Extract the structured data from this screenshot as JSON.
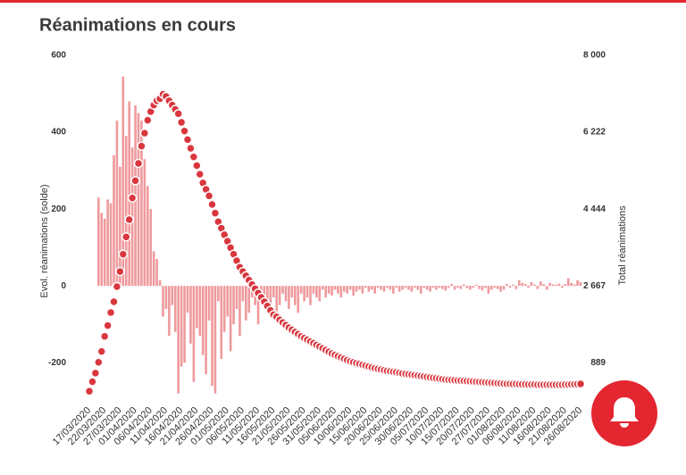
{
  "chart_data": {
    "type": "bar_line",
    "title": "Réanimations en cours",
    "y_label": "Evol. réanimations (solde)",
    "y2_label": "Total réanimations",
    "categories": [
      "17/03/2020",
      null,
      null,
      null,
      null,
      "22/03/2020",
      null,
      null,
      null,
      null,
      "27/03/2020",
      null,
      null,
      null,
      null,
      "01/04/2020",
      null,
      null,
      null,
      null,
      "06/04/2020",
      null,
      null,
      null,
      null,
      "11/04/2020",
      null,
      null,
      null,
      null,
      "16/04/2020",
      null,
      null,
      null,
      null,
      "21/04/2020",
      null,
      null,
      null,
      null,
      "26/04/2020",
      null,
      null,
      null,
      null,
      "01/05/2020",
      null,
      null,
      null,
      null,
      "06/05/2020",
      null,
      null,
      null,
      null,
      "11/05/2020",
      null,
      null,
      null,
      null,
      "16/05/2020",
      null,
      null,
      null,
      null,
      "21/05/2020",
      null,
      null,
      null,
      null,
      "26/05/2020",
      null,
      null,
      null,
      null,
      "31/05/2020",
      null,
      null,
      null,
      null,
      "05/06/2020",
      null,
      null,
      null,
      null,
      "10/06/2020",
      null,
      null,
      null,
      null,
      "15/06/2020",
      null,
      null,
      null,
      null,
      "20/06/2020",
      null,
      null,
      null,
      null,
      "25/06/2020",
      null,
      null,
      null,
      null,
      "30/06/2020",
      null,
      null,
      null,
      null,
      "05/07/2020",
      null,
      null,
      null,
      null,
      "10/07/2020",
      null,
      null,
      null,
      null,
      "15/07/2020",
      null,
      null,
      null,
      null,
      "20/07/2020",
      null,
      null,
      null,
      null,
      "27/07/2020",
      null,
      null,
      null,
      null,
      "01/08/2020",
      null,
      null,
      null,
      null,
      "06/08/2020",
      null,
      null,
      null,
      null,
      "11/08/2020",
      null,
      null,
      null,
      null,
      "16/08/2020",
      null,
      null,
      null,
      null,
      "21/08/2020",
      null,
      null,
      null,
      null,
      "26/08/2020"
    ],
    "series": [
      {
        "type": "bar",
        "color": "#ef9a9d",
        "values": [
          0,
          0,
          0,
          230,
          190,
          175,
          225,
          215,
          340,
          430,
          310,
          545,
          390,
          480,
          360,
          470,
          450,
          430,
          330,
          260,
          200,
          90,
          70,
          15,
          -80,
          -60,
          -130,
          -50,
          -120,
          -280,
          -210,
          -200,
          -70,
          -150,
          -250,
          -110,
          -130,
          -180,
          -230,
          -90,
          -260,
          -280,
          -40,
          -190,
          -120,
          -80,
          -170,
          -100,
          -60,
          -130,
          -40,
          -90,
          -70,
          -30,
          -50,
          -100,
          -20,
          -60,
          -40,
          -80,
          -30,
          -70,
          -50,
          -20,
          -40,
          -60,
          -30,
          -50,
          -70,
          -20,
          -40,
          -30,
          -50,
          -20,
          -30,
          -40,
          -10,
          -30,
          -20,
          -25,
          -10,
          -20,
          -30,
          -15,
          -20,
          -10,
          -25,
          -15,
          -10,
          -20,
          -5,
          -15,
          -10,
          -20,
          -5,
          -10,
          -15,
          -5,
          -10,
          -20,
          -5,
          -15,
          -10,
          -5,
          -10,
          -15,
          -5,
          -10,
          -20,
          -5,
          -10,
          -15,
          -5,
          -10,
          -5,
          -8,
          -12,
          -5,
          5,
          -10,
          -5,
          -8,
          4,
          -6,
          -10,
          -5,
          3,
          -8,
          -12,
          -5,
          -20,
          -10,
          -5,
          -8,
          -15,
          -10,
          5,
          -5,
          3,
          -8,
          15,
          8,
          5,
          -5,
          10,
          3,
          -8,
          12,
          5,
          -10,
          8,
          4,
          3,
          6,
          -5,
          5,
          20,
          8,
          4,
          15,
          10
        ]
      },
      {
        "type": "line",
        "axis": "y2",
        "color": "#d9363e",
        "values": [
          230,
          450,
          650,
          900,
          1150,
          1500,
          1750,
          2050,
          2300,
          2650,
          3000,
          3400,
          3800,
          4200,
          4700,
          5100,
          5500,
          5900,
          6200,
          6500,
          6700,
          6850,
          6950,
          7000,
          7100,
          7050,
          6950,
          6850,
          6750,
          6650,
          6450,
          6250,
          6050,
          5850,
          5650,
          5450,
          5250,
          5050,
          4900,
          4750,
          4550,
          4350,
          4150,
          4000,
          3850,
          3700,
          3550,
          3400,
          3250,
          3100,
          3000,
          2900,
          2800,
          2700,
          2600,
          2500,
          2400,
          2300,
          2200,
          2100,
          2000,
          1950,
          1880,
          1820,
          1760,
          1700,
          1650,
          1600,
          1550,
          1500,
          1460,
          1420,
          1380,
          1340,
          1300,
          1260,
          1220,
          1180,
          1140,
          1100,
          1070,
          1040,
          1010,
          980,
          950,
          920,
          900,
          880,
          860,
          840,
          820,
          800,
          780,
          760,
          745,
          730,
          715,
          700,
          690,
          680,
          670,
          655,
          640,
          630,
          620,
          610,
          600,
          590,
          580,
          570,
          560,
          550,
          540,
          530,
          520,
          510,
          500,
          495,
          490,
          485,
          480,
          475,
          470,
          465,
          460,
          455,
          450,
          445,
          440,
          435,
          430,
          425,
          420,
          415,
          410,
          405,
          400,
          400,
          395,
          395,
          390,
          390,
          390,
          385,
          385,
          385,
          380,
          380,
          380,
          380,
          380,
          380,
          380,
          380,
          380,
          385,
          385,
          390,
          390,
          395,
          400
        ]
      }
    ],
    "ylim": [
      -290,
      600
    ],
    "yticks": [
      -200,
      0,
      200,
      400,
      600
    ],
    "y2lim": [
      89,
      8000
    ],
    "y2ticks": [
      {
        "value": 889,
        "label": "889"
      },
      {
        "value": 2667,
        "label": "2 667"
      },
      {
        "value": 4444,
        "label": "4 444"
      },
      {
        "value": 6222,
        "label": "6 222"
      },
      {
        "value": 8000,
        "label": "8 000"
      }
    ],
    "grid": false
  }
}
